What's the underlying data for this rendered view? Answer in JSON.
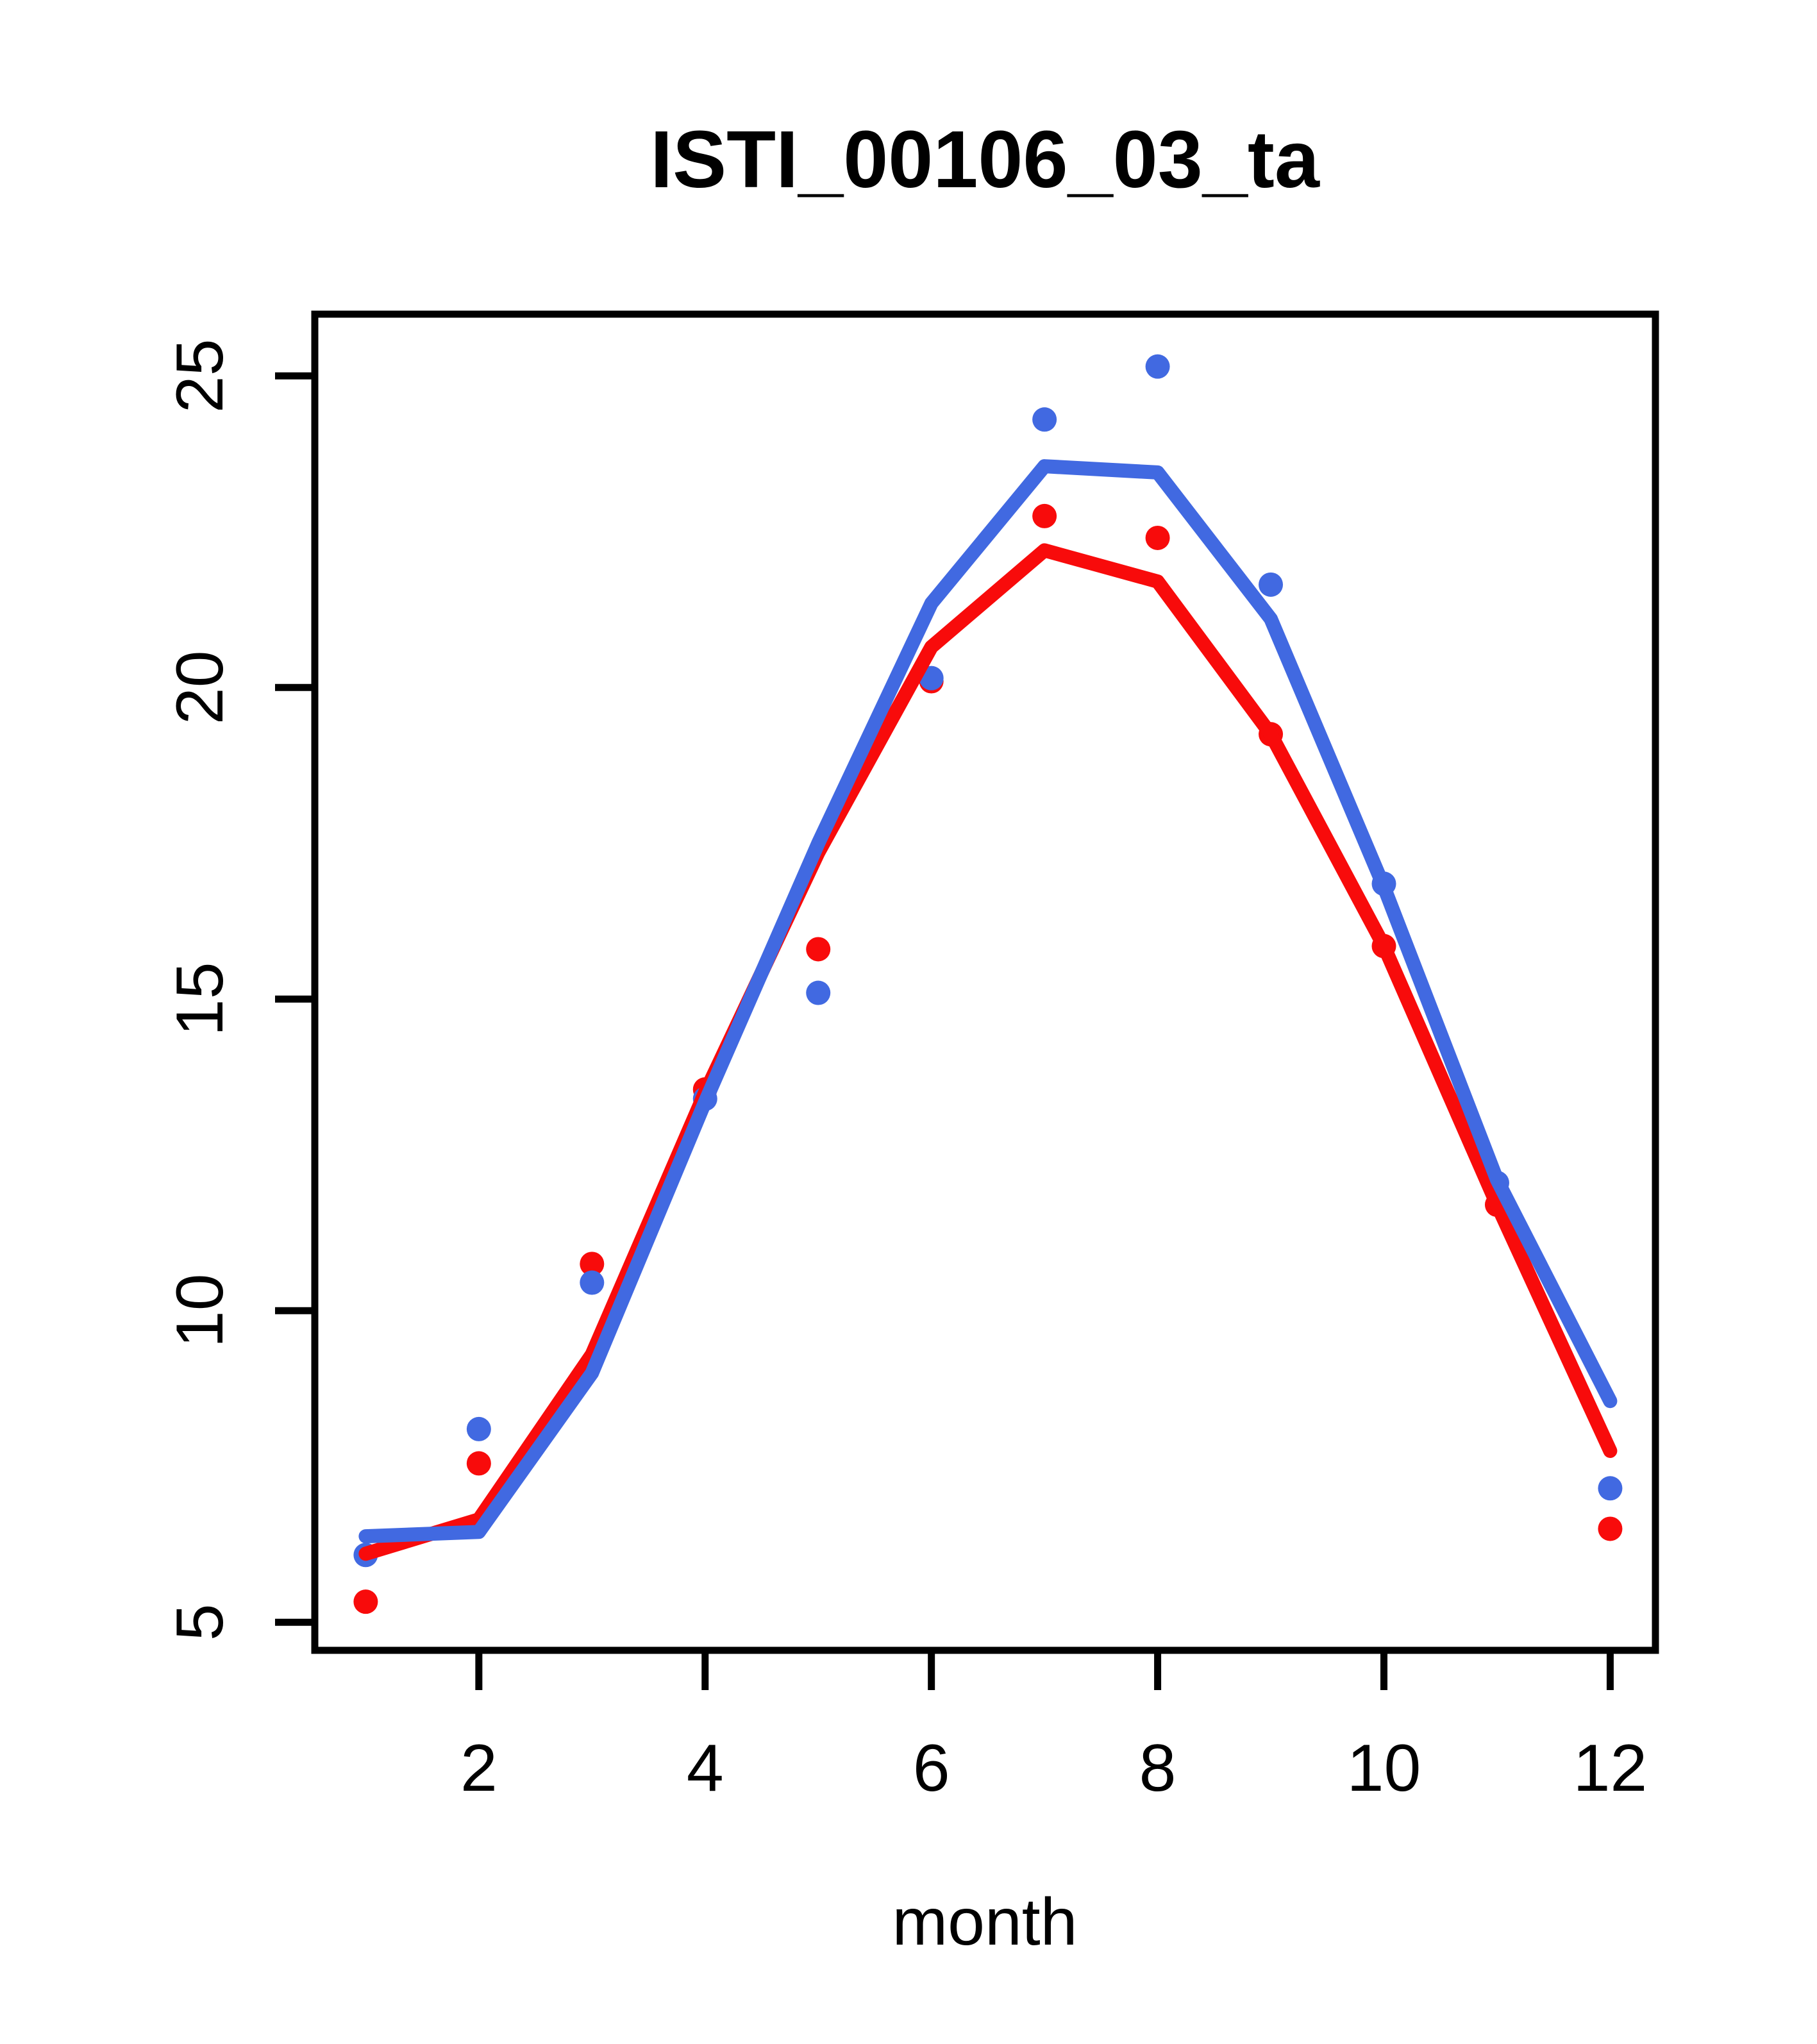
{
  "header": {
    "title": "ISTI_00106_03_ta"
  },
  "x_axis": {
    "label": "month",
    "ticks": [
      2,
      4,
      6,
      8,
      10,
      12
    ]
  },
  "y_axis": {
    "label": "",
    "ticks": [
      5,
      10,
      15,
      20,
      25
    ]
  },
  "colors": {
    "red": "#f80b0b",
    "blue": "#4169e1",
    "axis": "#000000"
  },
  "chart_data": {
    "type": "line",
    "title": "ISTI_00106_03_ta",
    "xlabel": "month",
    "ylabel": "",
    "x": [
      1,
      2,
      3,
      4,
      5,
      6,
      7,
      8,
      9,
      10,
      11,
      12
    ],
    "xlim": [
      0.55,
      12.4
    ],
    "ylim": [
      4.55,
      25.99
    ],
    "x_ticks": [
      2,
      4,
      6,
      8,
      10,
      12
    ],
    "y_ticks": [
      5,
      10,
      15,
      20,
      25
    ],
    "grid": false,
    "legend": "none",
    "series": [
      {
        "name": "red-points",
        "type": "scatter",
        "color": "#f80b0b",
        "values": [
          5.33,
          7.55,
          10.75,
          13.55,
          15.8,
          20.1,
          22.75,
          22.4,
          19.25,
          15.85,
          11.7,
          6.5
        ]
      },
      {
        "name": "blue-points",
        "type": "scatter",
        "color": "#4169e1",
        "values": [
          6.08,
          8.1,
          10.45,
          13.4,
          15.1,
          20.15,
          24.3,
          25.15,
          21.65,
          16.85,
          12.05,
          7.15
        ]
      },
      {
        "name": "red-line",
        "type": "line",
        "color": "#f80b0b",
        "values": [
          6.1,
          6.65,
          9.3,
          13.5,
          17.35,
          20.65,
          22.2,
          21.7,
          19.25,
          15.85,
          11.7,
          7.75
        ]
      },
      {
        "name": "blue-line",
        "type": "line",
        "color": "#4169e1",
        "values": [
          6.38,
          6.45,
          9.0,
          13.35,
          17.5,
          21.35,
          23.55,
          23.45,
          21.1,
          16.8,
          12.1,
          8.55
        ]
      }
    ]
  }
}
